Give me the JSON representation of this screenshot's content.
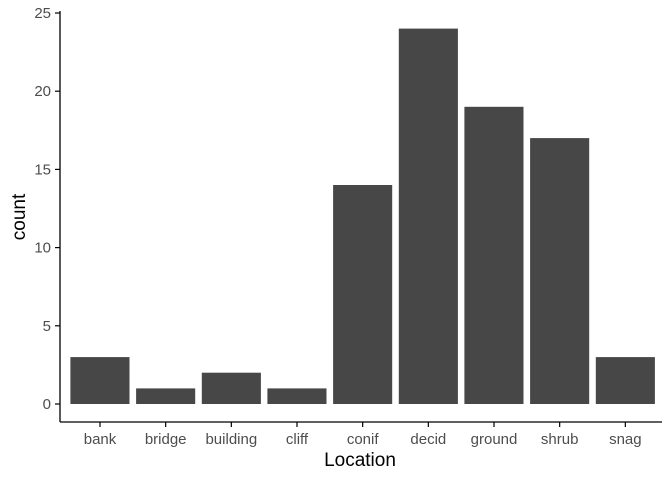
{
  "chart_data": {
    "type": "bar",
    "title": "",
    "xlabel": "Location",
    "ylabel": "count",
    "categories": [
      "bank",
      "bridge",
      "building",
      "cliff",
      "conif",
      "decid",
      "ground",
      "shrub",
      "snag"
    ],
    "values": [
      3,
      1,
      2,
      1,
      14,
      24,
      19,
      17,
      3
    ],
    "ylim": [
      0,
      25
    ],
    "yticks": [
      0,
      5,
      10,
      15,
      20,
      25
    ],
    "grid": false,
    "legend": "none",
    "colors": {
      "bar": "#474747",
      "axis": "#000000",
      "tick_text": "#4d4d4d"
    }
  }
}
